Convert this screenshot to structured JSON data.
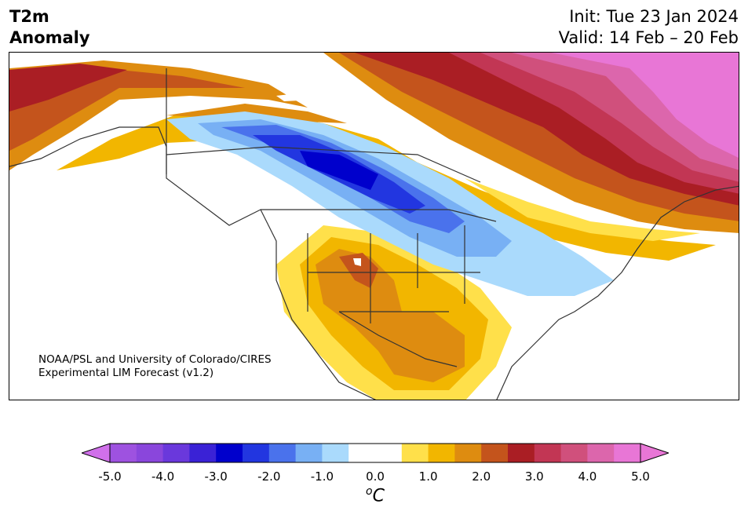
{
  "header": {
    "variable": "T2m",
    "subtitle": "Anomaly",
    "init": "Init: Tue 23 Jan 2024",
    "valid": "Valid: 14 Feb – 20 Feb"
  },
  "credit": {
    "line1": "NOAA/PSL and University of Colorado/CIRES",
    "line2": "Experimental LIM Forecast (v1.2)"
  },
  "colorbar": {
    "unit_prefix": "o",
    "unit_letter": "C",
    "ticks": [
      "-5.0",
      "-4.0",
      "-3.0",
      "-2.0",
      "-1.0",
      "0.0",
      "1.0",
      "2.0",
      "3.0",
      "4.0",
      "5.0"
    ],
    "bins": [
      {
        "lo": -5.0,
        "hi": -4.5,
        "color": "#9e52e0"
      },
      {
        "lo": -4.5,
        "hi": -4.0,
        "color": "#8a46dc"
      },
      {
        "lo": -4.0,
        "hi": -3.5,
        "color": "#6a38dc"
      },
      {
        "lo": -3.5,
        "hi": -3.0,
        "color": "#3a22d6"
      },
      {
        "lo": -3.0,
        "hi": -2.5,
        "color": "#0000cc"
      },
      {
        "lo": -2.5,
        "hi": -2.0,
        "color": "#2236e0"
      },
      {
        "lo": -2.0,
        "hi": -1.5,
        "color": "#4a72ec"
      },
      {
        "lo": -1.5,
        "hi": -1.0,
        "color": "#78b0f4"
      },
      {
        "lo": -1.0,
        "hi": -0.5,
        "color": "#aadafc"
      },
      {
        "lo": -0.5,
        "hi": 0.5,
        "color": "#ffffff"
      },
      {
        "lo": 0.5,
        "hi": 1.0,
        "color": "#ffe04a"
      },
      {
        "lo": 1.0,
        "hi": 1.5,
        "color": "#f2b600"
      },
      {
        "lo": 1.5,
        "hi": 2.0,
        "color": "#de8c10"
      },
      {
        "lo": 2.0,
        "hi": 2.5,
        "color": "#c4541c"
      },
      {
        "lo": 2.5,
        "hi": 3.0,
        "color": "#aa1e24"
      },
      {
        "lo": 3.0,
        "hi": 3.5,
        "color": "#c23654"
      },
      {
        "lo": 3.5,
        "hi": 4.0,
        "color": "#d0507c"
      },
      {
        "lo": 4.0,
        "hi": 4.5,
        "color": "#dc66ac"
      },
      {
        "lo": 4.5,
        "hi": 5.0,
        "color": "#e876d6"
      }
    ],
    "under_color": "#d070ea",
    "over_color": "#e876d6"
  }
}
